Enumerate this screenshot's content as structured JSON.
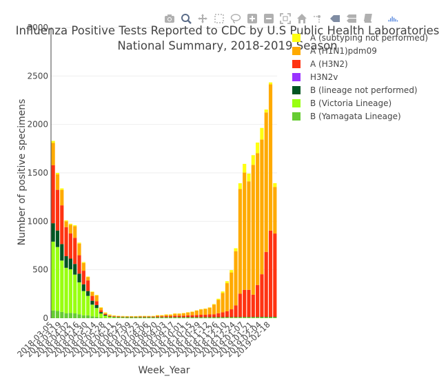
{
  "modebar": {
    "buttons": [
      "camera-icon",
      "zoom-icon",
      "pan-icon",
      "box-select-icon",
      "lasso-icon",
      "zoom-in-icon",
      "zoom-out-icon",
      "autoscale-icon",
      "home-icon",
      "spike-lines-icon",
      "hover-closest-icon",
      "hover-compare-icon",
      "docs-icon",
      "plotly-logo-icon"
    ]
  },
  "chart_data": {
    "type": "bar",
    "barmode": "stack",
    "title": "Influenza Positive Tests Reported to CDC by U.S Public Health Laboratories",
    "title_line2": "National Summary, 2018-2019 Season",
    "xlabel": "Week_Year",
    "ylabel": "Number of positive specimens",
    "ylim": [
      0,
      3000
    ],
    "yticks": [
      0,
      500,
      1000,
      1500,
      2000,
      2500,
      3000
    ],
    "xtick_labels": [
      "2018-03-05",
      "2018-03-19",
      "2018-04-02",
      "2018-04-16",
      "2018-04-30",
      "2018-05-14",
      "2018-05-28",
      "2018-06-11",
      "2018-06-25",
      "2018-07-09",
      "2018-07-23",
      "2018-08-06",
      "2018-08-20",
      "2018-09-03",
      "2018-09-17",
      "2018-10-01",
      "2018-10-15",
      "2018-10-29",
      "2018-11-12",
      "2018-11-26",
      "2018-12-10",
      "2018-12-24",
      "2019-01-07",
      "2019-01-21",
      "2019-02-04",
      "2019-02-18"
    ],
    "categories": [
      "2018-03-05",
      "2018-03-12",
      "2018-03-19",
      "2018-03-26",
      "2018-04-02",
      "2018-04-09",
      "2018-04-16",
      "2018-04-23",
      "2018-04-30",
      "2018-05-07",
      "2018-05-14",
      "2018-05-21",
      "2018-05-28",
      "2018-06-04",
      "2018-06-11",
      "2018-06-18",
      "2018-06-25",
      "2018-07-02",
      "2018-07-09",
      "2018-07-16",
      "2018-07-23",
      "2018-07-30",
      "2018-08-06",
      "2018-08-13",
      "2018-08-20",
      "2018-08-27",
      "2018-09-03",
      "2018-09-10",
      "2018-09-17",
      "2018-09-24",
      "2018-10-01",
      "2018-10-08",
      "2018-10-15",
      "2018-10-22",
      "2018-10-29",
      "2018-11-05",
      "2018-11-12",
      "2018-11-19",
      "2018-11-26",
      "2018-12-03",
      "2018-12-10",
      "2018-12-17",
      "2018-12-24",
      "2018-12-31",
      "2019-01-07",
      "2019-01-14",
      "2019-01-21",
      "2019-01-28",
      "2019-02-04",
      "2019-02-11",
      "2019-02-18",
      "2019-02-25"
    ],
    "series": [
      {
        "name": "B (Yamagata Lineage)",
        "color": "#66cc33",
        "values": [
          80,
          75,
          65,
          50,
          55,
          50,
          40,
          30,
          30,
          20,
          15,
          8,
          5,
          3,
          2,
          2,
          2,
          1,
          1,
          1,
          1,
          1,
          1,
          1,
          1,
          1,
          1,
          1,
          1,
          1,
          1,
          1,
          1,
          1,
          1,
          1,
          1,
          1,
          1,
          1,
          2,
          2,
          2,
          3,
          3,
          3,
          3,
          3,
          4,
          4,
          4,
          4
        ]
      },
      {
        "name": "B (Victoria Lineage)",
        "color": "#99ff11",
        "values": [
          710,
          660,
          530,
          470,
          450,
          400,
          330,
          250,
          200,
          120,
          90,
          40,
          20,
          10,
          8,
          5,
          5,
          5,
          5,
          5,
          5,
          5,
          5,
          5,
          5,
          5,
          5,
          5,
          5,
          5,
          5,
          5,
          5,
          5,
          5,
          5,
          5,
          5,
          5,
          5,
          5,
          5,
          5,
          5,
          5,
          5,
          5,
          5,
          5,
          5,
          5,
          5
        ]
      },
      {
        "name": "B (lineage not performed)",
        "color": "#005522",
        "values": [
          190,
          170,
          170,
          120,
          110,
          110,
          90,
          70,
          50,
          40,
          30,
          15,
          10,
          5,
          5,
          5,
          5,
          5,
          5,
          5,
          5,
          5,
          5,
          5,
          5,
          5,
          5,
          5,
          5,
          5,
          5,
          5,
          5,
          5,
          5,
          5,
          5,
          5,
          5,
          5,
          5,
          5,
          5,
          5,
          5,
          5,
          5,
          5,
          5,
          5,
          5,
          5
        ]
      },
      {
        "name": "H3N2v",
        "color": "#9933ff",
        "values": [
          0,
          0,
          0,
          0,
          0,
          0,
          0,
          0,
          0,
          0,
          0,
          0,
          0,
          0,
          0,
          0,
          0,
          0,
          0,
          0,
          0,
          0,
          0,
          0,
          0,
          0,
          0,
          0,
          0,
          0,
          0,
          0,
          0,
          0,
          0,
          0,
          0,
          0,
          0,
          0,
          0,
          0,
          0,
          0,
          0,
          0,
          0,
          0,
          0,
          0,
          0,
          0
        ]
      },
      {
        "name": "A (H3N2)",
        "color": "#ff3311",
        "values": [
          600,
          420,
          400,
          300,
          260,
          270,
          190,
          140,
          110,
          50,
          40,
          20,
          10,
          5,
          5,
          5,
          3,
          3,
          3,
          3,
          5,
          5,
          5,
          5,
          8,
          8,
          10,
          10,
          15,
          15,
          15,
          18,
          20,
          22,
          25,
          25,
          28,
          30,
          40,
          50,
          60,
          80,
          120,
          240,
          280,
          280,
          230,
          330,
          440,
          670,
          890,
          860
        ]
      },
      {
        "name": "A (H1N1)pdm09",
        "color": "#ffaa00",
        "values": [
          230,
          160,
          160,
          60,
          90,
          120,
          120,
          80,
          35,
          40,
          60,
          25,
          10,
          10,
          5,
          5,
          5,
          5,
          5,
          5,
          5,
          5,
          5,
          5,
          10,
          10,
          15,
          15,
          20,
          20,
          25,
          30,
          35,
          45,
          55,
          60,
          70,
          100,
          140,
          200,
          290,
          380,
          560,
          1080,
          1210,
          1120,
          1340,
          1360,
          1390,
          1440,
          1510,
          480
        ]
      },
      {
        "name": "A (subtyping not performed)",
        "color": "#ffff11",
        "values": [
          20,
          15,
          15,
          10,
          10,
          10,
          10,
          10,
          5,
          5,
          5,
          5,
          5,
          5,
          3,
          3,
          3,
          3,
          3,
          3,
          3,
          3,
          3,
          3,
          3,
          3,
          3,
          3,
          3,
          3,
          3,
          3,
          3,
          3,
          3,
          3,
          3,
          5,
          10,
          15,
          20,
          25,
          30,
          60,
          90,
          80,
          100,
          110,
          120,
          30,
          20,
          40
        ]
      }
    ],
    "legend_order": [
      "A (subtyping not performed)",
      "A (H1N1)pdm09",
      "A (H3N2)",
      "H3N2v",
      "B (lineage not performed)",
      "B (Victoria Lineage)",
      "B (Yamagata Lineage)"
    ],
    "legend_position": "top-right"
  }
}
